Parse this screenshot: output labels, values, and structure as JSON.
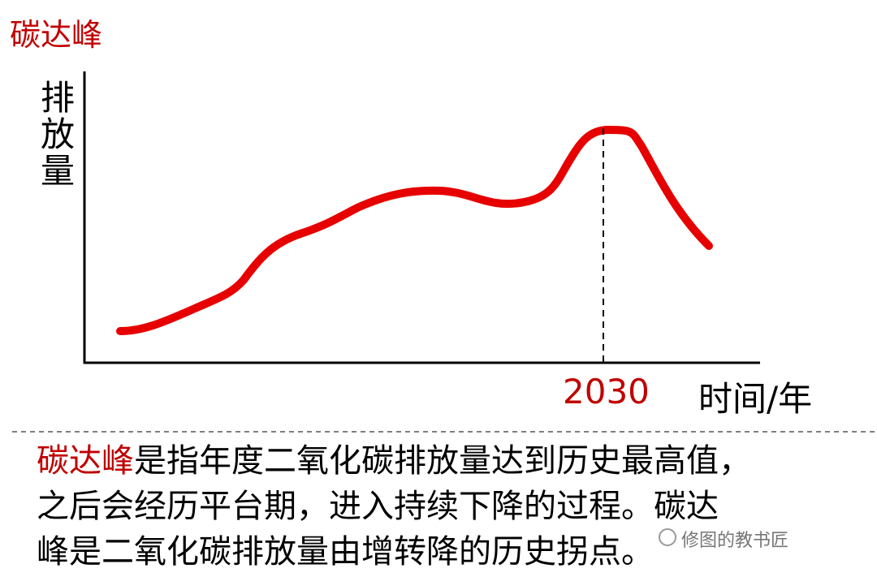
{
  "title": "碳达峰",
  "diagram": {
    "y_axis_label": "排放量",
    "x_axis_label": "时间/年",
    "peak_marker": "2030"
  },
  "description": {
    "lines": [
      [
        {
          "text": "碳达峰",
          "highlight": true
        },
        {
          "text": "是指年度二氧化碳排放量达到历史最高值，",
          "highlight": false
        }
      ],
      [
        {
          "text": "之后会经历平台期，进入持续下降的过程。碳达",
          "highlight": false
        }
      ],
      [
        {
          "text": "峰是二氧化碳排放量由增转降的历史拐点。",
          "highlight": false
        }
      ]
    ]
  },
  "watermark": "修图的教书匠"
}
